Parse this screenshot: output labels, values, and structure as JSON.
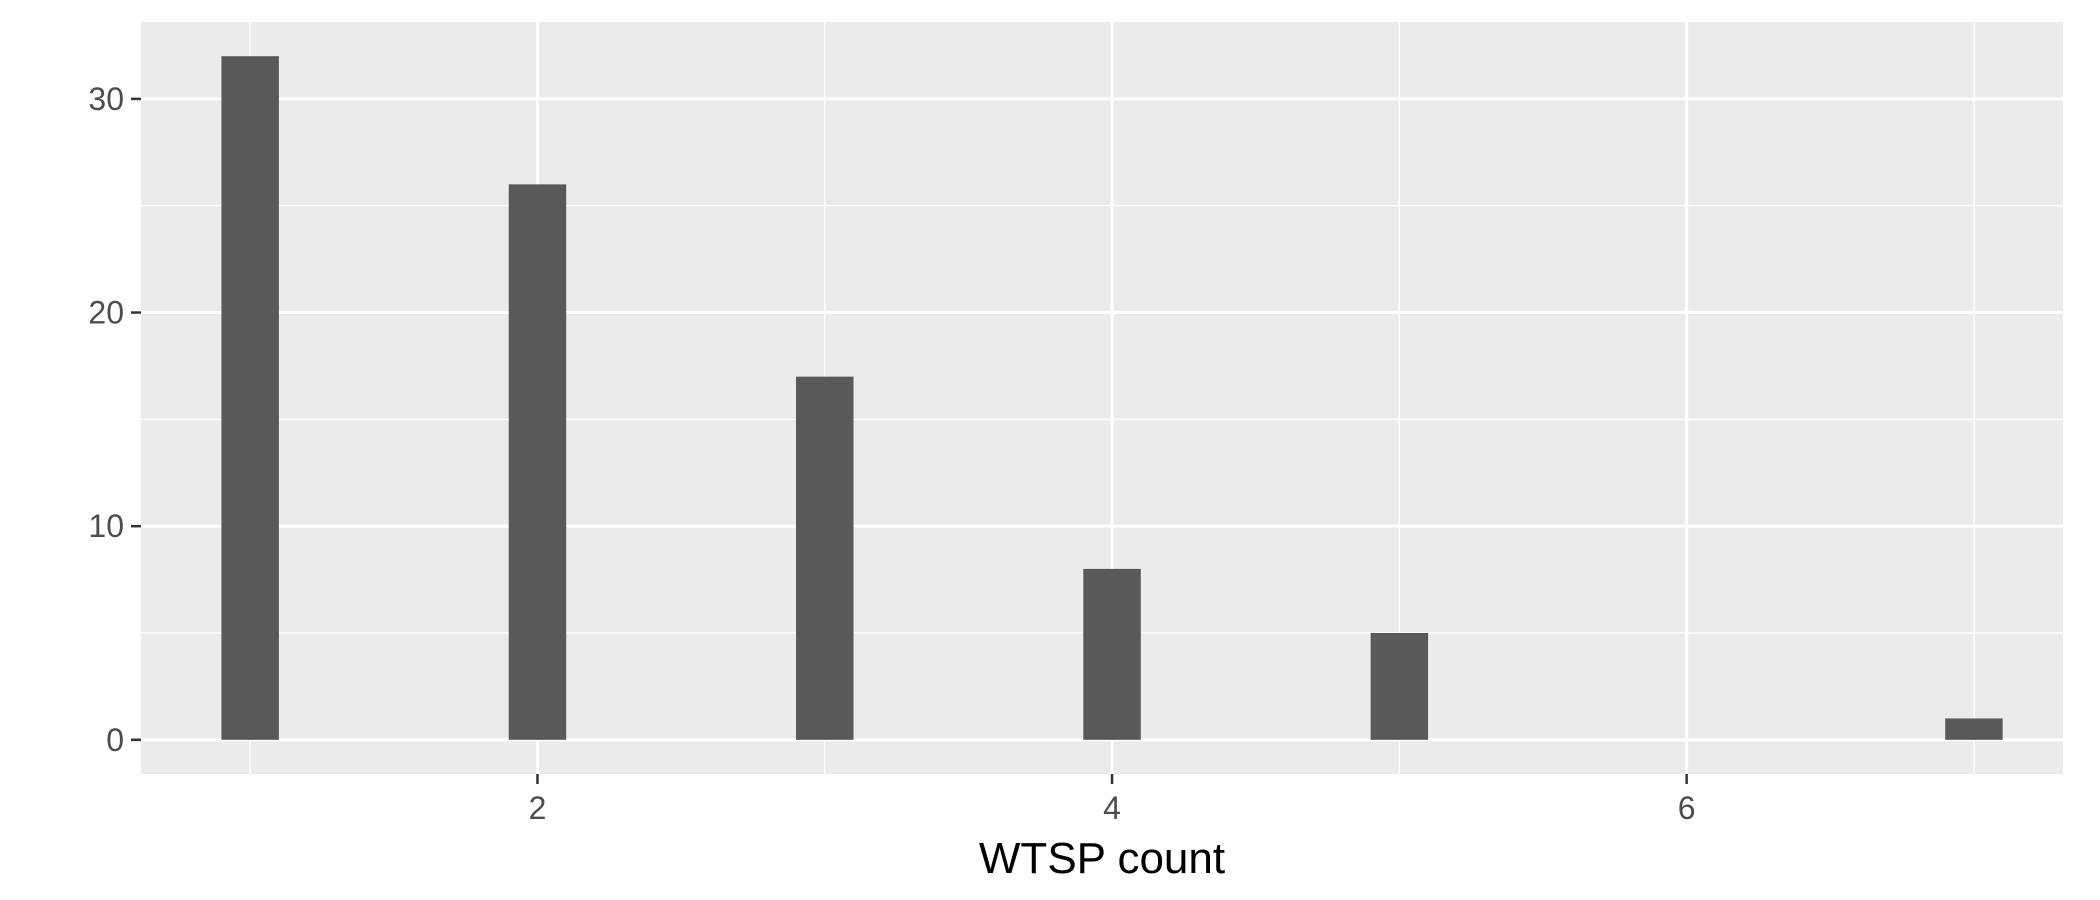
{
  "chart_data": {
    "type": "bar",
    "title": "",
    "xlabel": "WTSP count",
    "ylabel": "",
    "x": [
      1,
      2,
      3,
      4,
      5,
      7
    ],
    "values": [
      32,
      26,
      17,
      8,
      5,
      1
    ],
    "xlim": [
      0.62,
      7.31
    ],
    "ylim": [
      -1.6,
      33.6
    ],
    "x_ticks": [
      2,
      4,
      6
    ],
    "y_ticks": [
      0,
      10,
      20,
      30
    ],
    "x_tick_labels": [
      "2",
      "4",
      "6"
    ],
    "y_tick_labels": [
      "0",
      "10",
      "20",
      "30"
    ],
    "bar_width": 0.2,
    "grid": true,
    "colors": {
      "bar": "#595959",
      "panel": "#ebebeb",
      "grid": "#ffffff"
    }
  }
}
